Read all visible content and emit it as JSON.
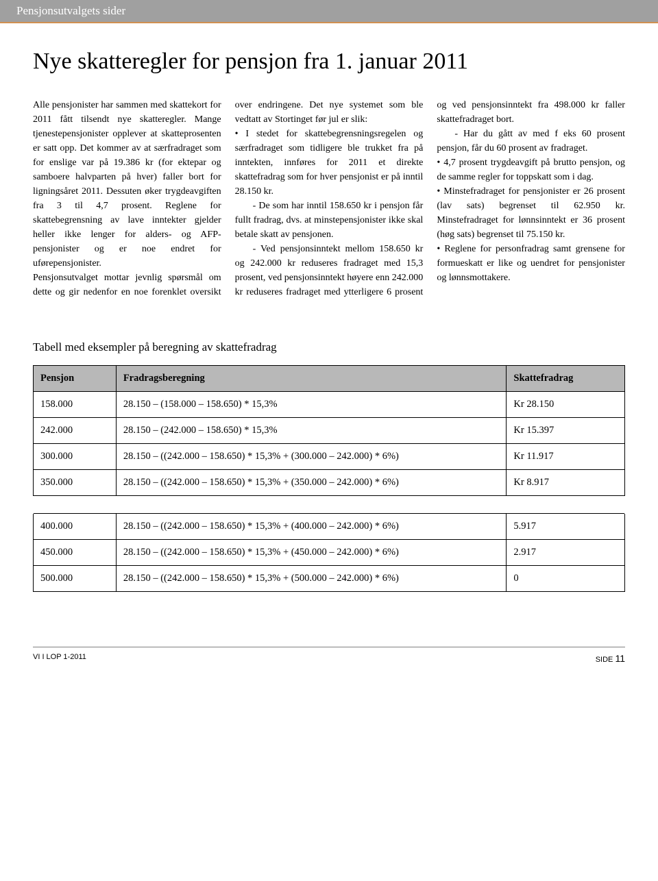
{
  "header": {
    "section_label": "Pensjonsutvalgets sider",
    "bar_bg": "#a0a0a0",
    "bar_text_color": "#ffffff",
    "accent_color": "#d09050"
  },
  "title": "Nye skatteregler for pensjon fra 1. januar 2011",
  "body": {
    "col": {
      "p1": "Alle pensjonister har sammen med skattekort for 2011 fått tilsendt nye skatteregler. Mange tjenestepensjonister opplever at skatteprosenten er satt opp. Det kommer av at særfradraget som for enslige var på 19.386 kr (for ektepar og samboere halvparten på hver) faller bort for ligningsåret 2011. Dessuten øker trygdeavgiften fra 3 til 4,7 prosent. Reglene for skattebegrensning av lave inntekter gjelder heller ikke lenger for alders- og AFP-pensjonister og er noe endret for uførepensjonister.",
      "p2": "Pensjonsutvalget mottar jevnlig spørsmål om dette og gir nedenfor en noe forenklet oversikt over endringene. Det nye systemet som ble vedtatt av Stortinget før jul er slik:",
      "b1": "• I stedet for skattebegrensningsregelen og særfradraget som tidligere ble trukket fra på inntekten, innføres for 2011 et direkte skattefradrag som for hver pensjonist er på inntil 28.150 kr.",
      "b1a": "- De som har inntil 158.650 kr i pensjon får fullt fradrag, dvs. at minstepensjonister ikke skal betale skatt av  pensjonen.",
      "b1b": "- Ved pensjonsinntekt mellom 158.650 kr og 242.000 kr reduseres fradraget med 15,3 prosent, ved pensjonsinntekt høyere enn 242.000 kr reduseres fradraget med ytterligere 6 prosent og ved pensjonsinntekt fra 498.000 kr faller skattefradraget bort.",
      "b1c": "- Har du gått av med f eks 60 prosent pensjon, får du 60 prosent av fradraget.",
      "b2": "• 4,7 prosent trygdeavgift på brutto pensjon, og de samme regler for toppskatt som i dag.",
      "b3": "• Minstefradraget for pensjonister er 26 prosent (lav sats) begrenset til 62.950 kr. Minstefradraget for lønnsinntekt er 36 prosent (høg sats) begrenset til 75.150 kr.",
      "b4": "• Reglene for personfradrag samt grensene for formueskatt er like og uendret for pensjonister og lønnsmottakere."
    }
  },
  "table": {
    "title": "Tabell med eksempler på beregning av skattefradrag",
    "header_bg": "#b8b8b8",
    "headers": [
      "Pensjon",
      "Fradragsberegning",
      "Skattefradrag"
    ],
    "rows": [
      [
        "158.000",
        "28.150 – (158.000 – 158.650) * 15,3%",
        "Kr 28.150"
      ],
      [
        "242.000",
        "28.150 – (242.000 – 158.650) * 15,3%",
        "Kr 15.397"
      ],
      [
        "300.000",
        "28.150 – ((242.000 – 158.650) * 15,3% + (300.000 – 242.000) * 6%)",
        "Kr 11.917"
      ],
      [
        "350.000",
        "28.150 – ((242.000 – 158.650) * 15,3% + (350.000 – 242.000) * 6%)",
        "Kr   8.917"
      ],
      [
        "400.000",
        "28.150 – ((242.000 – 158.650) * 15,3% + (400.000 – 242.000) * 6%)",
        "5.917"
      ],
      [
        "450.000",
        "28.150 – ((242.000 – 158.650) * 15,3% + (450.000 – 242.000) * 6%)",
        "2.917"
      ],
      [
        "500.000",
        "28.150 – ((242.000 – 158.650) * 15,3% + (500.000 – 242.000) * 6%)",
        "0"
      ]
    ]
  },
  "footer": {
    "left": "VI I LOP 1-2011",
    "right_label": "SIDE",
    "page_number": "11"
  }
}
